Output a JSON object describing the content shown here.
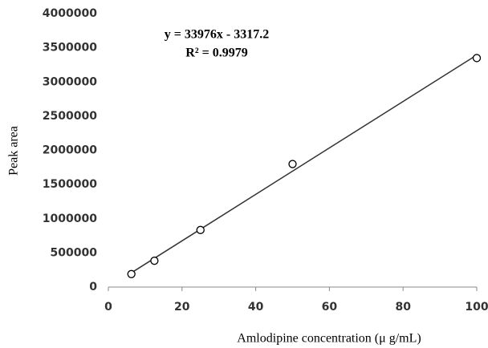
{
  "chart_data": {
    "type": "scatter",
    "x_label": "Amlodipine concentration (μ g/mL)",
    "y_label": "Peak area",
    "x": [
      6.25,
      12.5,
      25,
      50,
      100
    ],
    "series": [
      {
        "color": "#000000",
        "values": [
          190000,
          385000,
          835000,
          1800000,
          3350000
        ]
      }
    ],
    "trendline": {
      "slope": 33976,
      "intercept": -3317.2,
      "equation": "y = 33976x - 3317.2",
      "r2": "R² = 0.9979",
      "color": "#333333"
    },
    "xlim": [
      0,
      100
    ],
    "xticks": [
      0,
      20,
      40,
      60,
      80,
      100
    ],
    "ylim": [
      0,
      4000000
    ],
    "yticks": [
      0,
      500000,
      1000000,
      1500000,
      2000000,
      2500000,
      3000000,
      3500000,
      4000000
    ],
    "grid": false
  }
}
